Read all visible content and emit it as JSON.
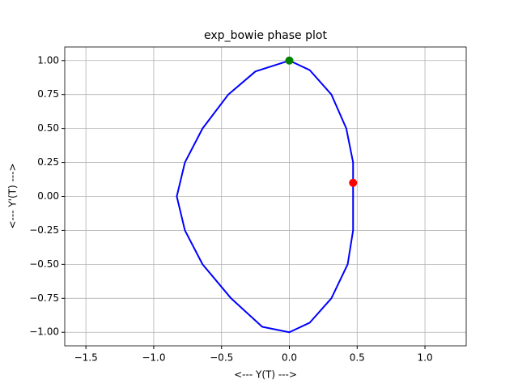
{
  "chart_data": {
    "type": "line",
    "title": "exp_bowie phase plot",
    "xlabel": "<--- Y(T) --->",
    "ylabel": "<--- Y'(T) --->",
    "xlim": [
      -1.656,
      1.304
    ],
    "ylim": [
      -1.1,
      1.1
    ],
    "xticks": [
      {
        "value": -1.5,
        "label": "−1.5"
      },
      {
        "value": -1.0,
        "label": "−1.0"
      },
      {
        "value": -0.5,
        "label": "−0.5"
      },
      {
        "value": 0,
        "label": "0.0"
      },
      {
        "value": 0.5,
        "label": "0.5"
      },
      {
        "value": 1.0,
        "label": "1.0"
      }
    ],
    "yticks": [
      {
        "value": -1.0,
        "label": "−1.00"
      },
      {
        "value": -0.75,
        "label": "−0.75"
      },
      {
        "value": -0.5,
        "label": "−0.50"
      },
      {
        "value": -0.25,
        "label": "−0.25"
      },
      {
        "value": 0,
        "label": "0.00"
      },
      {
        "value": 0.25,
        "label": "0.25"
      },
      {
        "value": 0.5,
        "label": "0.50"
      },
      {
        "value": 0.75,
        "label": "0.75"
      },
      {
        "value": 1.0,
        "label": "1.00"
      }
    ],
    "grid": true,
    "series": [
      {
        "color": "#0000ff",
        "x": [
          0,
          0.15,
          0.31,
          0.42,
          0.47,
          0.47,
          0.47,
          0.43,
          0.31,
          0.15,
          0,
          -0.2,
          -0.43,
          -0.64,
          -0.77,
          -0.83,
          -0.77,
          -0.64,
          -0.45,
          -0.25,
          0
        ],
        "values": [
          1,
          0.93,
          0.75,
          0.5,
          0.25,
          0.0,
          -0.25,
          -0.5,
          -0.75,
          -0.93,
          -1,
          -0.96,
          -0.75,
          -0.5,
          -0.25,
          0,
          0.25,
          0.5,
          0.75,
          0.92,
          1
        ]
      }
    ],
    "markers": [
      {
        "color": "#008000",
        "x": 0,
        "y": 1
      },
      {
        "color": "#ff0000",
        "x": 0.47,
        "y": 0.1
      }
    ]
  }
}
